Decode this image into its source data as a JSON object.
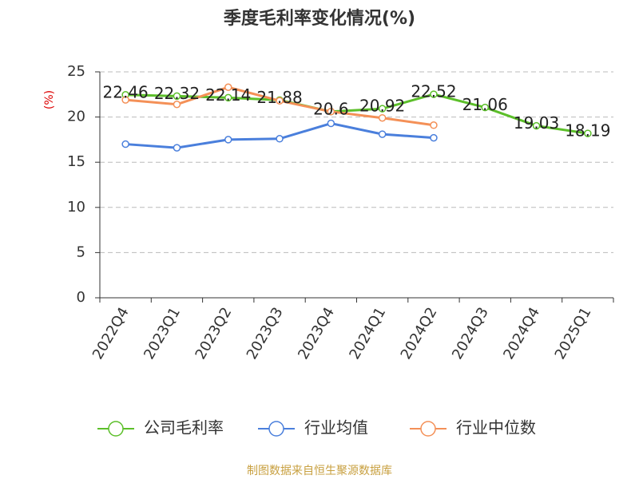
{
  "chart_data": {
    "type": "line",
    "title": "季度毛利率变化情况(%)",
    "y_label": "(%)",
    "categories": [
      "2022Q4",
      "2023Q1",
      "2023Q2",
      "2023Q3",
      "2023Q4",
      "2024Q1",
      "2024Q2",
      "2024Q3",
      "2024Q4",
      "2025Q1"
    ],
    "series": [
      {
        "name": "公司毛利率",
        "color": "#5cbf2a",
        "values": [
          22.46,
          22.32,
          22.14,
          21.88,
          20.6,
          20.92,
          22.52,
          21.06,
          19.03,
          18.19
        ],
        "show_labels": true
      },
      {
        "name": "行业均值",
        "color": "#4a7fdc",
        "values": [
          17.0,
          16.6,
          17.5,
          17.6,
          19.3,
          18.1,
          17.7,
          null,
          null,
          null
        ]
      },
      {
        "name": "行业中位数",
        "color": "#f49057",
        "values": [
          21.9,
          21.4,
          23.3,
          21.8,
          20.6,
          19.9,
          19.1,
          null,
          null,
          null
        ]
      }
    ],
    "ylim": [
      0,
      25
    ],
    "yticks": [
      0,
      5,
      10,
      15,
      20,
      25
    ],
    "grid": true,
    "source": "制图数据来自恒生聚源数据库"
  }
}
